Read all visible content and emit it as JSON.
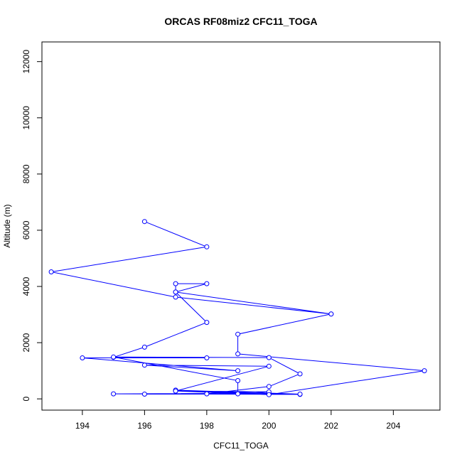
{
  "chart_data": {
    "type": "line",
    "title": "ORCAS RF08miz2 CFC11_TOGA",
    "xlabel": "CFC11_TOGA",
    "ylabel": "Altitude (m)",
    "xlim": [
      192.7,
      205.5
    ],
    "ylim": [
      -400,
      12700
    ],
    "x_ticks": [
      194,
      196,
      198,
      200,
      202,
      204
    ],
    "y_ticks": [
      0,
      2000,
      4000,
      6000,
      8000,
      10000,
      12000
    ],
    "x_tick_labels": [
      "194",
      "196",
      "198",
      "200",
      "202",
      "204"
    ],
    "y_tick_labels": [
      "0",
      "2000",
      "4000",
      "6000",
      "8000",
      "10000",
      "12000"
    ],
    "grid": false,
    "series": [
      {
        "color": "#0000ff",
        "marker": "open-circle",
        "points": [
          [
            196,
            6310
          ],
          [
            198,
            5410
          ],
          [
            193,
            4520
          ],
          [
            197,
            3620
          ],
          [
            202,
            3020
          ],
          [
            197,
            3800
          ],
          [
            198,
            4100
          ],
          [
            197,
            4100
          ],
          [
            197,
            3800
          ],
          [
            198,
            2720
          ],
          [
            196,
            1840
          ],
          [
            195,
            1480
          ],
          [
            198,
            1460
          ],
          [
            194,
            1460
          ],
          [
            199,
            1000
          ],
          [
            196,
            1200
          ],
          [
            200,
            1160
          ],
          [
            197,
            280
          ],
          [
            201,
            160
          ],
          [
            195,
            180
          ],
          [
            200,
            200
          ],
          [
            197,
            310
          ],
          [
            201,
            170
          ],
          [
            196,
            170
          ],
          [
            198,
            180
          ],
          [
            200,
            440
          ],
          [
            201,
            890
          ],
          [
            200,
            1470
          ],
          [
            195,
            1490
          ],
          [
            199,
            650
          ],
          [
            199,
            180
          ],
          [
            200,
            250
          ],
          [
            197,
            280
          ],
          [
            200,
            150
          ],
          [
            205,
            1000
          ],
          [
            199,
            1600
          ],
          [
            199,
            2300
          ],
          [
            202,
            3020
          ]
        ]
      }
    ]
  }
}
